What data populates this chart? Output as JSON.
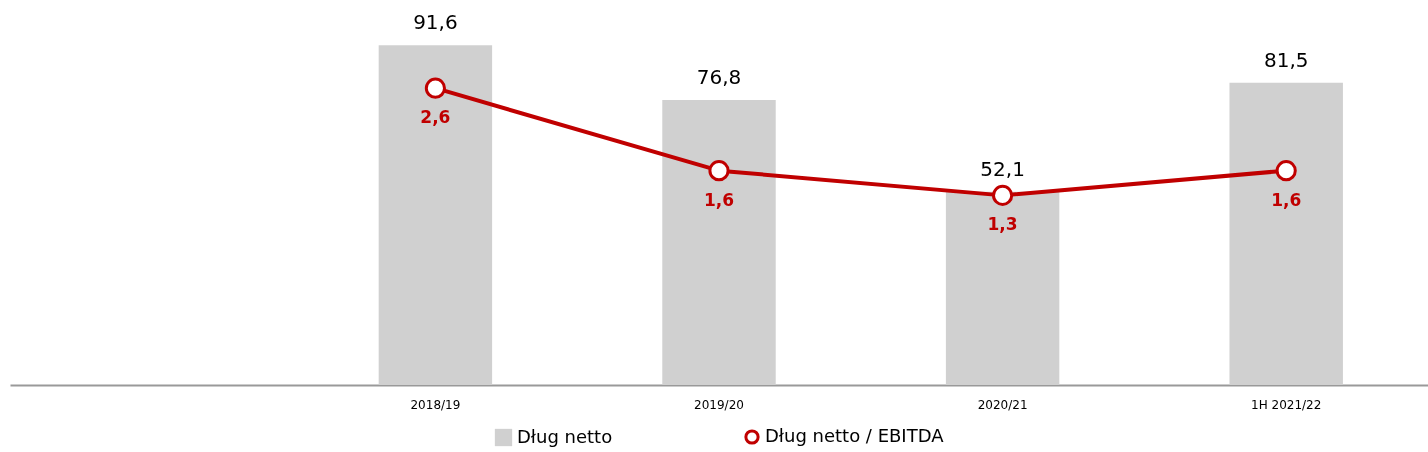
{
  "chart_data": {
    "type": "bar",
    "categories": [
      null,
      "2018/19",
      "2019/20",
      "2020/21",
      "1H 2021/22"
    ],
    "series": [
      {
        "name": "Dług netto",
        "color": "#d0d0d0",
        "values": [
          null,
          91.6,
          76.8,
          52.1,
          81.5
        ],
        "value_labels": [
          null,
          "91,6",
          "76,8",
          "52,1",
          "81,5"
        ]
      },
      {
        "name": "Dług netto / EBITDA",
        "type": "line",
        "axis": "y2",
        "color": "#c00000",
        "marker": "circle",
        "values": [
          null,
          2.6,
          1.6,
          1.3,
          1.6
        ],
        "value_labels": [
          null,
          "2,6",
          "1,6",
          "1,3",
          "1,6"
        ]
      }
    ],
    "legend": "bottom",
    "tick_labels": "x"
  }
}
